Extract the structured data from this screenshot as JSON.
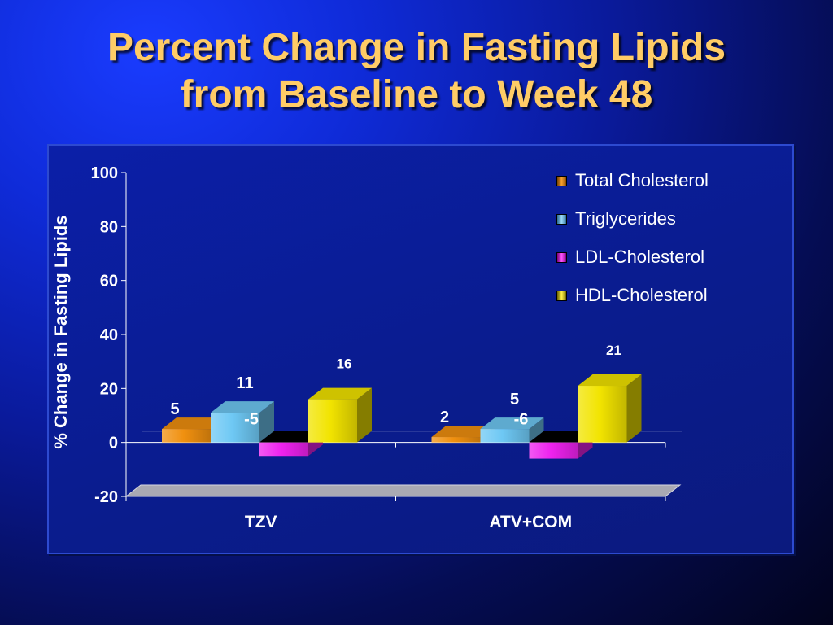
{
  "slide": {
    "title_line1": "Percent Change in Fasting Lipids",
    "title_line2": "from Baseline to Week 48"
  },
  "chart_data": {
    "type": "bar",
    "ylabel": "% Change in Fasting Lipids",
    "xlabel": "",
    "ylim": [
      -20,
      100
    ],
    "yticks": [
      "100",
      "80",
      "60",
      "40",
      "20",
      "0",
      "-20"
    ],
    "categories": [
      "TZV",
      "ATV+COM"
    ],
    "legend_position": "top-right",
    "grid": false,
    "series": [
      {
        "name": "Total Cholesterol",
        "values": [
          5,
          2
        ],
        "labels": [
          "5",
          "2"
        ],
        "color": "#f0900f"
      },
      {
        "name": "Triglycerides",
        "values": [
          11,
          5
        ],
        "labels": [
          "11",
          "5"
        ],
        "color": "#6ec8f4"
      },
      {
        "name": "LDL-Cholesterol",
        "values": [
          -5,
          -6
        ],
        "labels": [
          "-5",
          "-6"
        ],
        "color": "#ee22ee"
      },
      {
        "name": "HDL-Cholesterol",
        "values": [
          16,
          21
        ],
        "labels": [
          "16",
          "21"
        ],
        "color": "#f2e400"
      }
    ]
  }
}
